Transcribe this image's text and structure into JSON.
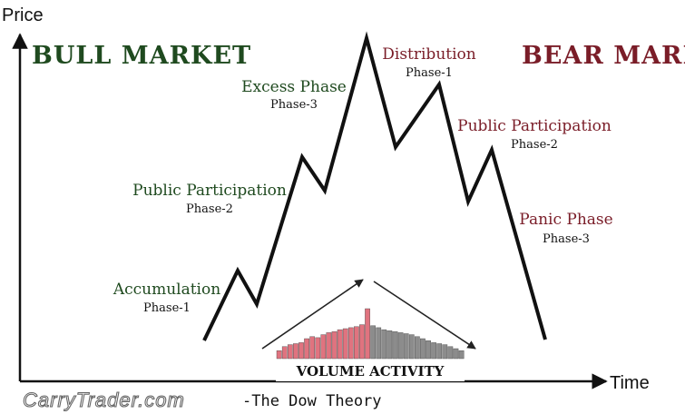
{
  "axes": {
    "y_label": "Price",
    "x_label": "Time"
  },
  "markets": {
    "bull": {
      "label": "BULL MARKET",
      "color": "#1f4a1f"
    },
    "bear": {
      "label": "BEAR MARKET",
      "color": "#7a1d28"
    }
  },
  "phases": {
    "accumulation": {
      "name": "Accumulation",
      "sub": "Phase-1"
    },
    "public_participation_bull": {
      "name": "Public Participation",
      "sub": "Phase-2"
    },
    "excess": {
      "name": "Excess Phase",
      "sub": "Phase-3"
    },
    "distribution": {
      "name": "Distribution",
      "sub": "Phase-1"
    },
    "public_participation_bear": {
      "name": "Public Participation",
      "sub": "Phase-2"
    },
    "panic": {
      "name": "Panic Phase",
      "sub": "Phase-3"
    }
  },
  "volume": {
    "label": "VOLUME ACTIVITY",
    "rise_color": "#e0737f",
    "fall_color": "#8c8c8c",
    "heights": [
      8,
      12,
      14,
      15,
      16,
      20,
      22,
      21,
      24,
      26,
      27,
      29,
      30,
      31,
      32,
      34,
      50,
      33,
      31,
      29,
      28,
      27,
      26,
      25,
      24,
      22,
      20,
      18,
      16,
      15,
      14,
      12,
      10,
      8
    ]
  },
  "footer": {
    "brand": "CarryTrader.com",
    "caption": "-The Dow Theory"
  }
}
